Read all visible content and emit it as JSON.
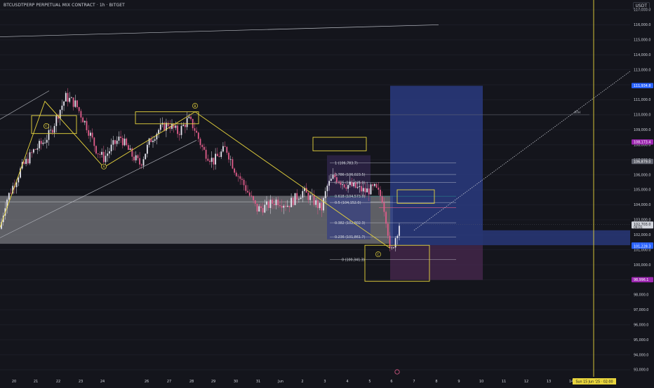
{
  "header": {
    "title": "BTCUSDTPERP PERPETUAL MIX CONTRACT · 1h · BITGET",
    "currency": "USDT"
  },
  "colors": {
    "background": "#14151c",
    "candle_up": "#e6e6f0",
    "candle_down": "#e05c8a",
    "trend_line": "#e8d53d",
    "gray_zone": "#9a9ca3",
    "long_target": "#2c3f8c",
    "long_stop": "#5b2f63",
    "fib": "#d1d4dc"
  },
  "chart_data": {
    "type": "candlestick",
    "symbol": "BTCUSDTPERP",
    "interval": "1h",
    "exchange": "BITGET",
    "price_axis": {
      "min": 93000,
      "max": 117000,
      "ticks": [
        "117,000.0",
        "116,000.0",
        "115,000.0",
        "114,000.0",
        "113,000.0",
        "112,000.0",
        "111,000.0",
        "110,000.0",
        "109,000.0",
        "108,000.0",
        "107,000.0",
        "106,000.0",
        "105,000.0",
        "104,000.0",
        "103,000.0",
        "102,000.0",
        "101,000.0",
        "100,000.0",
        "99,000.0",
        "98,000.0",
        "97,000.0",
        "96,000.0",
        "95,000.0",
        "94,000.0",
        "93,000.0"
      ]
    },
    "time_axis": {
      "ticks": [
        "20",
        "21",
        "22",
        "23",
        "24",
        "26",
        "27",
        "28",
        "29",
        "30",
        "31",
        "Jun",
        "2",
        "3",
        "4",
        "5",
        "6",
        "7",
        "8",
        "9",
        "10",
        "11",
        "12",
        "13",
        "14"
      ],
      "cursor_label": "Sun 15 Jun '25 · 02:00"
    },
    "price_labels": [
      {
        "text": "111,934.8",
        "price": 111934.8,
        "color": "#2962ff"
      },
      {
        "text": "108,173.4",
        "price": 108173.4,
        "color": "#9c27b0"
      },
      {
        "text": "106,879.0",
        "price": 106879.0,
        "color": "#5d606b"
      },
      {
        "text": "102,703.0",
        "price": 102703.0,
        "color": "#d1d4dc",
        "sub": "09:01"
      },
      {
        "text": "101,306.1",
        "price": 101306.1,
        "color": "#2962ff"
      },
      {
        "text": "101,228.3",
        "price": 101228.3,
        "color": "#2962ff"
      },
      {
        "text": "98,996.1",
        "price": 98996.1,
        "color": "#9c27b0"
      }
    ],
    "fibonacci": [
      {
        "level": "1",
        "price": 106783.7,
        "label": "1 (106,783.7)"
      },
      {
        "level": "0.786",
        "price": 106023.5,
        "label": "0.786 (106,023.5)"
      },
      {
        "level": "0.705",
        "price": 105485.0,
        "label": "0.705 (105,485.0)"
      },
      {
        "level": "0.618",
        "price": 104573.0,
        "label": "0.618 (104,573.0)"
      },
      {
        "level": "0.5",
        "price": 104152.0,
        "label": "0.5 (104,152.0)"
      },
      {
        "level": "0.382",
        "price": 102802.3,
        "label": "0.382 (102,802.3)"
      },
      {
        "level": "0.236",
        "price": 101861.7,
        "label": "0.236 (101,861.7)"
      },
      {
        "level": "0",
        "price": 100341.3,
        "label": "0 (100,341.3)"
      }
    ],
    "annotations": [
      {
        "text": "C",
        "kind": "wave"
      },
      {
        "text": "A",
        "kind": "wave"
      },
      {
        "text": "B",
        "kind": "wave"
      },
      {
        "text": "C",
        "kind": "wave"
      },
      {
        "text": "ATH",
        "kind": "level"
      }
    ],
    "ranges": {
      "gray_zone": [
        101400,
        104600
      ],
      "long_entry": 101306.1,
      "long_target": 111934.8,
      "long_stop": 98996.1
    }
  }
}
